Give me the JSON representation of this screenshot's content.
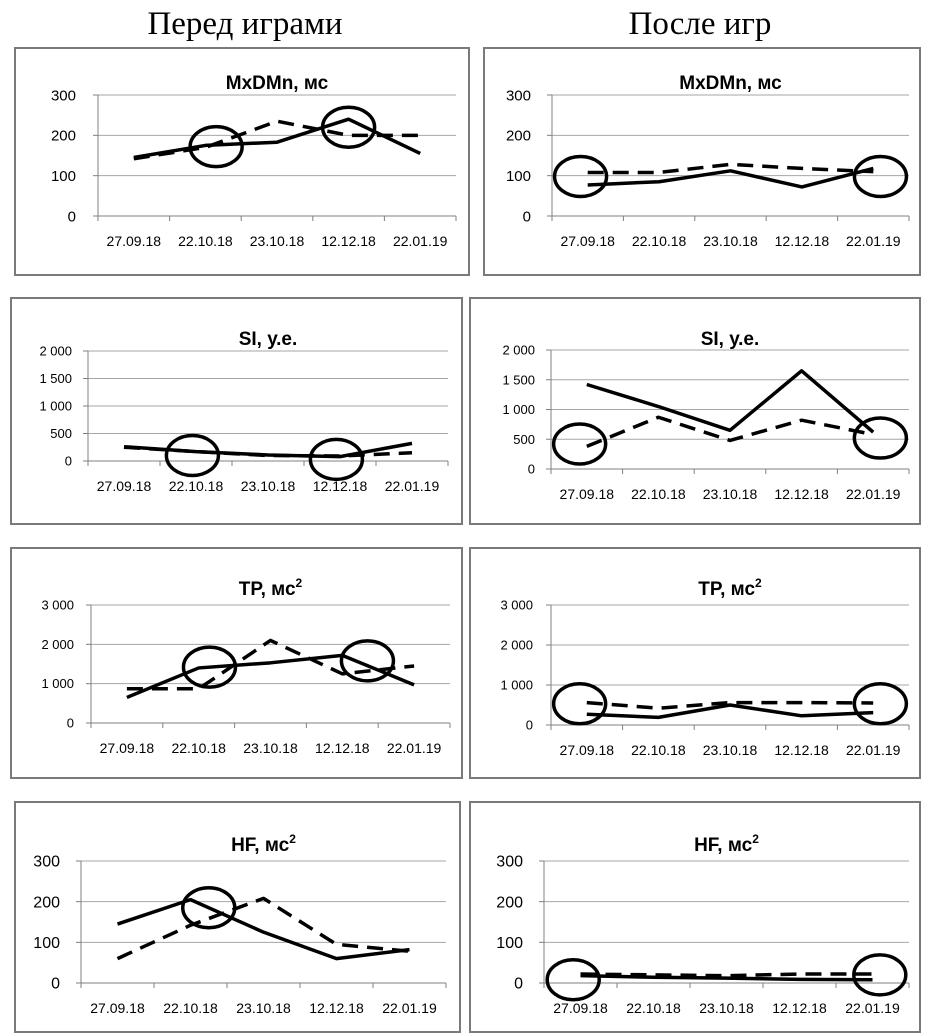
{
  "headings": {
    "before": "Перед играми",
    "after": "После игр"
  },
  "chart_data": [
    {
      "type": "line",
      "title": "MxDMn, мс",
      "categories": [
        "27.09.18",
        "22.10.18",
        "23.10.18",
        "12.12.18",
        "22.01.19"
      ],
      "ylim": [
        0,
        300
      ],
      "yticks": [
        "0",
        "100",
        "200",
        "300"
      ],
      "series": [
        {
          "style": "solid",
          "values": [
            145,
            175,
            183,
            240,
            155
          ]
        },
        {
          "style": "dashed",
          "values": [
            142,
            170,
            235,
            200,
            200
          ]
        }
      ],
      "circles": [
        1.15,
        3.0
      ],
      "circle_values": [
        172,
        220
      ]
    },
    {
      "type": "line",
      "title": "MxDMn, мс",
      "categories": [
        "27.09.18",
        "22.10.18",
        "23.10.18",
        "12.12.18",
        "22.01.19"
      ],
      "ylim": [
        0,
        300
      ],
      "yticks": [
        "0",
        "100",
        "200",
        "300"
      ],
      "series": [
        {
          "style": "solid",
          "values": [
            77,
            85,
            112,
            72,
            118
          ]
        },
        {
          "style": "dashed",
          "values": [
            108,
            108,
            128,
            118,
            110
          ]
        }
      ],
      "circles": [
        -0.1,
        4.1
      ],
      "circle_values": [
        98,
        98
      ]
    },
    {
      "type": "line",
      "title": "SI, у.е.",
      "categories": [
        "27.09.18",
        "22.10.18",
        "23.10.18",
        "12.12.18",
        "22.01.19"
      ],
      "ylim": [
        0,
        2000
      ],
      "yticks": [
        "0",
        "500",
        "1 000",
        "1 500",
        "2 000"
      ],
      "series": [
        {
          "style": "solid",
          "values": [
            260,
            170,
            110,
            80,
            320
          ]
        },
        {
          "style": "dashed",
          "values": [
            250,
            170,
            100,
            90,
            150
          ]
        }
      ],
      "circles": [
        0.95,
        2.95
      ],
      "circle_values": [
        100,
        30
      ]
    },
    {
      "type": "line",
      "title": "SI, у.е.",
      "categories": [
        "27.09.18",
        "22.10.18",
        "23.10.18",
        "12.12.18",
        "22.01.19"
      ],
      "ylim": [
        0,
        2000
      ],
      "yticks": [
        "0",
        "500",
        "1 000",
        "1 500",
        "2 000"
      ],
      "series": [
        {
          "style": "solid",
          "values": [
            1420,
            1050,
            650,
            1650,
            620
          ]
        },
        {
          "style": "dashed",
          "values": [
            380,
            870,
            480,
            820,
            580
          ]
        }
      ],
      "circles": [
        -0.1,
        4.1
      ],
      "circle_values": [
        420,
        520
      ]
    },
    {
      "type": "line",
      "title": "TP, мс",
      "title_sup": "2",
      "categories": [
        "27.09.18",
        "22.10.18",
        "23.10.18",
        "12.12.18",
        "22.01.19"
      ],
      "ylim": [
        0,
        3000
      ],
      "yticks": [
        "0",
        "1 000",
        "2 000",
        "3 000"
      ],
      "series": [
        {
          "style": "solid",
          "values": [
            650,
            1400,
            1530,
            1720,
            970
          ]
        },
        {
          "style": "dashed",
          "values": [
            870,
            870,
            2100,
            1250,
            1450
          ]
        }
      ],
      "circles": [
        1.15,
        3.35
      ],
      "circle_values": [
        1420,
        1580
      ]
    },
    {
      "type": "line",
      "title": "TP, мс",
      "title_sup": "2",
      "categories": [
        "27.09.18",
        "22.10.18",
        "23.10.18",
        "12.12.18",
        "22.01.19"
      ],
      "ylim": [
        0,
        3000
      ],
      "yticks": [
        "0",
        "1 000",
        "2 000",
        "3 000"
      ],
      "series": [
        {
          "style": "solid",
          "values": [
            270,
            190,
            500,
            230,
            310
          ]
        },
        {
          "style": "dashed",
          "values": [
            560,
            420,
            560,
            560,
            550
          ]
        }
      ],
      "circles": [
        -0.1,
        4.1
      ],
      "circle_values": [
        530,
        530
      ]
    },
    {
      "type": "line",
      "title": "HF, мс",
      "title_sup": "2",
      "categories": [
        "27.09.18",
        "22.10.18",
        "23.10.18",
        "12.12.18",
        "22.01.19"
      ],
      "ylim": [
        0,
        300
      ],
      "yticks": [
        "0",
        "100",
        "200",
        "300"
      ],
      "series": [
        {
          "style": "solid",
          "values": [
            145,
            205,
            125,
            60,
            82
          ]
        },
        {
          "style": "dashed",
          "values": [
            60,
            142,
            208,
            95,
            78
          ]
        }
      ],
      "circles": [
        1.25
      ],
      "circle_values": [
        185
      ]
    },
    {
      "type": "line",
      "title": "HF, мс",
      "title_sup": "2",
      "categories": [
        "27.09.18",
        "22.10.18",
        "23.10.18",
        "12.12.18",
        "22.01.19"
      ],
      "ylim": [
        0,
        300
      ],
      "yticks": [
        "0",
        "100",
        "200",
        "300"
      ],
      "series": [
        {
          "style": "solid",
          "values": [
            18,
            14,
            12,
            9,
            8
          ]
        },
        {
          "style": "dashed",
          "values": [
            22,
            20,
            18,
            22,
            22
          ]
        }
      ],
      "circles": [
        -0.1,
        4.1
      ],
      "circle_values": [
        8,
        20
      ]
    }
  ]
}
